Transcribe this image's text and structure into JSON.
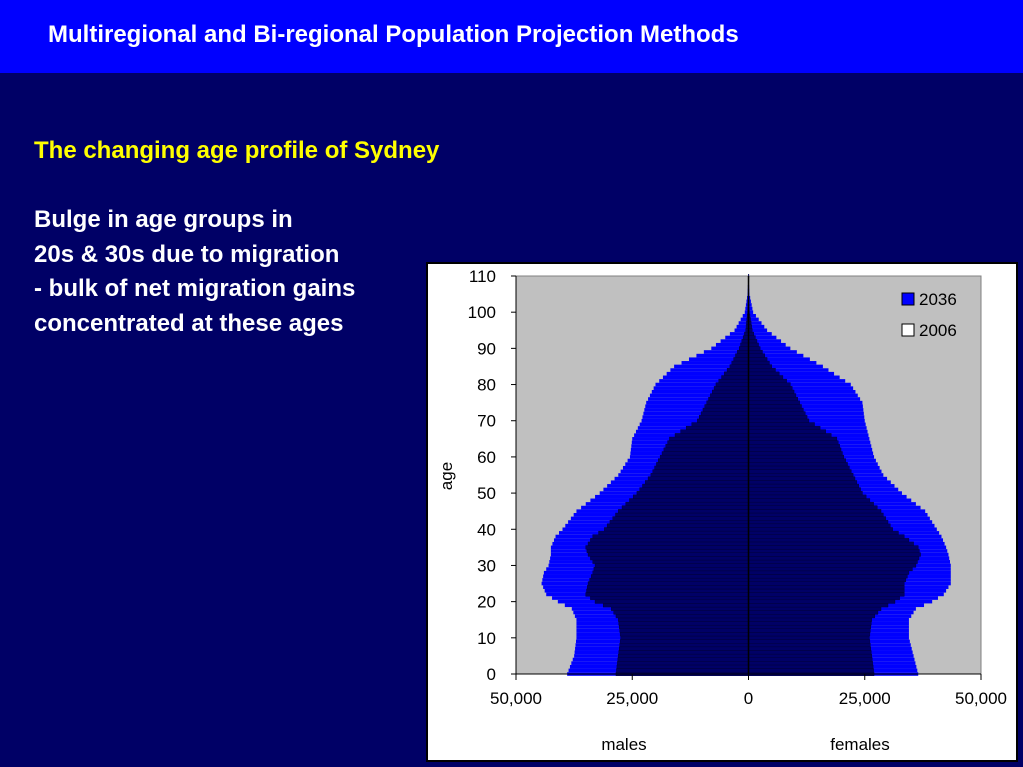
{
  "slide": {
    "title": "Multiregional and Bi-regional Population Projection Methods",
    "subtitle": "The changing age profile of Sydney",
    "body_lines": [
      "Bulge in age groups in",
      "20s & 30s due to migration",
      "- bulk of net migration gains",
      "concentrated at these ages"
    ]
  },
  "colors": {
    "title_bar": "#0000ff",
    "background": "#000066",
    "subtitle": "#ffff00",
    "plot_area": "#c0c0c0",
    "series_2036": "#0000ff",
    "series_2006": "#000066"
  },
  "chart_data": {
    "type": "bar",
    "orientation": "horizontal",
    "subtype": "population pyramid",
    "title": "",
    "ylabel": "age",
    "x_left_label": "males",
    "x_right_label": "females",
    "xlim": [
      -50000,
      50000
    ],
    "ylim": [
      0,
      110
    ],
    "x_ticks": [
      -50000,
      -25000,
      0,
      25000,
      50000
    ],
    "x_tick_labels": [
      "50,000",
      "25,000",
      "0",
      "25,000",
      "50,000"
    ],
    "y_ticks": [
      0,
      10,
      20,
      30,
      40,
      50,
      60,
      70,
      80,
      90,
      100,
      110
    ],
    "legend": "top-right",
    "grid": false,
    "ages_sampled": [
      0,
      5,
      10,
      15,
      18,
      20,
      22,
      25,
      28,
      30,
      33,
      35,
      38,
      40,
      45,
      50,
      55,
      60,
      65,
      70,
      75,
      80,
      85,
      90,
      95,
      100,
      105,
      110
    ],
    "series": [
      {
        "name": "2036",
        "males": [
          39000,
          37500,
          37000,
          37000,
          38000,
          41000,
          43500,
          44500,
          44000,
          43000,
          42500,
          42500,
          41500,
          40000,
          37000,
          32000,
          28000,
          25500,
          25000,
          23000,
          22000,
          20000,
          16000,
          8000,
          3000,
          800,
          200,
          50
        ],
        "females": [
          36500,
          35500,
          34500,
          34500,
          36000,
          39500,
          42000,
          43500,
          43500,
          43500,
          43000,
          42500,
          41500,
          40500,
          38000,
          33000,
          29000,
          27000,
          26000,
          25000,
          24500,
          22000,
          16000,
          9000,
          4000,
          1000,
          200,
          50
        ]
      },
      {
        "name": "2006",
        "males": [
          28500,
          28000,
          27500,
          28000,
          29500,
          33000,
          35000,
          34500,
          33500,
          33000,
          34500,
          35000,
          33500,
          31000,
          28000,
          24000,
          21000,
          19000,
          17000,
          11000,
          9000,
          7000,
          4000,
          2000,
          600,
          200,
          50,
          20
        ],
        "females": [
          27000,
          26500,
          26000,
          26500,
          28500,
          31500,
          33500,
          33500,
          34500,
          36000,
          37000,
          36500,
          33500,
          31000,
          28500,
          24500,
          22500,
          20500,
          19000,
          13000,
          11000,
          9000,
          5000,
          2500,
          800,
          200,
          50,
          20
        ]
      }
    ]
  }
}
